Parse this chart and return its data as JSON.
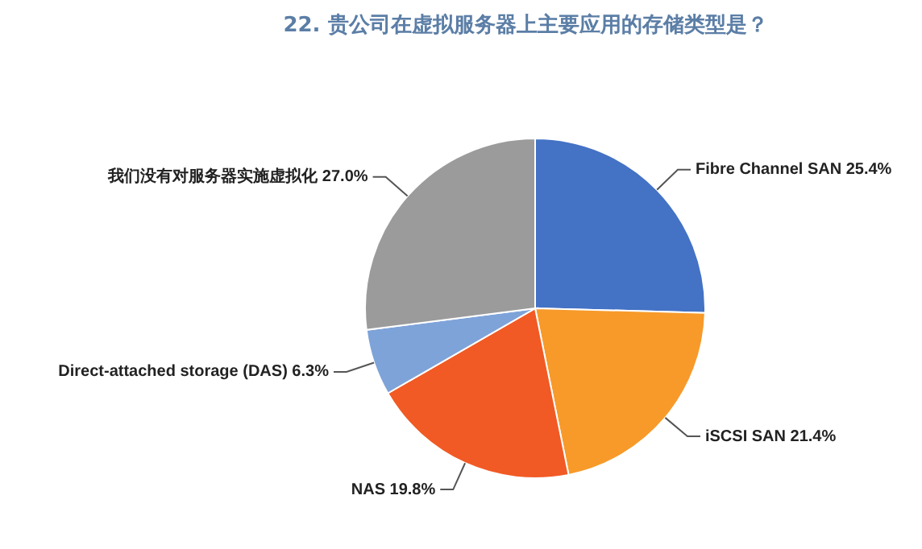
{
  "chart_data": {
    "type": "pie",
    "title": "22. 贵公司在虚拟服务器上主要应用的存储类型是？",
    "categories": [
      "Fibre Channel SAN",
      "iSCSI SAN",
      "NAS",
      "Direct-attached storage (DAS)",
      "我们没有对服务器实施虚拟化"
    ],
    "values": [
      25.4,
      21.4,
      19.8,
      6.3,
      27.0
    ],
    "value_labels": [
      "25.4%",
      "21.4%",
      "19.8%",
      "6.3%",
      "27.0%"
    ],
    "colors": [
      "#4472c4",
      "#f79a2a",
      "#f15a24",
      "#7ea3d9",
      "#9b9b9b"
    ],
    "legend": false
  }
}
